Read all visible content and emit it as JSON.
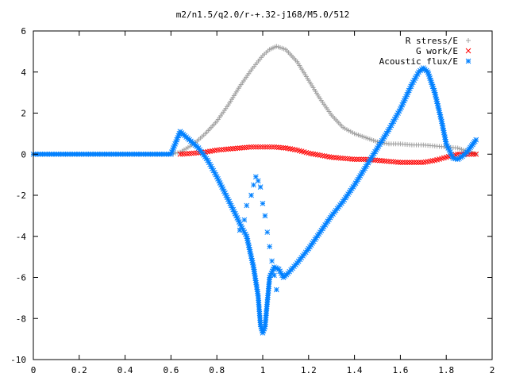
{
  "chart_data": {
    "type": "scatter",
    "title": "m2/n1.5/q2.0/r-+.32-j168/M5.0/512",
    "xlabel": "",
    "ylabel": "",
    "xlim": [
      0,
      2
    ],
    "ylim": [
      -10,
      6
    ],
    "x_ticks": [
      "0",
      "0.2",
      "0.4",
      "0.6",
      "0.8",
      "1",
      "1.2",
      "1.4",
      "1.6",
      "1.8",
      "2"
    ],
    "y_ticks": [
      "6",
      "4",
      "2",
      "0",
      "-2",
      "-4",
      "-6",
      "-8",
      "-10"
    ],
    "grid": false,
    "legend_position": "top-right",
    "series": [
      {
        "name": "R stress/E",
        "marker": "plus",
        "color": "#a0a0a0",
        "x": [
          0,
          0.1,
          0.2,
          0.3,
          0.4,
          0.5,
          0.6,
          0.64,
          0.7,
          0.75,
          0.8,
          0.85,
          0.9,
          0.95,
          1.0,
          1.03,
          1.06,
          1.1,
          1.15,
          1.2,
          1.25,
          1.3,
          1.35,
          1.4,
          1.45,
          1.5,
          1.55,
          1.6,
          1.65,
          1.7,
          1.75,
          1.8,
          1.85,
          1.9,
          1.93
        ],
        "y": [
          0,
          0,
          0,
          0,
          0,
          0,
          0,
          0.1,
          0.5,
          1.0,
          1.6,
          2.4,
          3.3,
          4.1,
          4.8,
          5.1,
          5.25,
          5.1,
          4.5,
          3.6,
          2.7,
          1.9,
          1.3,
          1.0,
          0.8,
          0.6,
          0.5,
          0.5,
          0.45,
          0.45,
          0.4,
          0.35,
          0.3,
          0.1,
          0.0
        ]
      },
      {
        "name": "G work/E",
        "marker": "cross",
        "color": "#ff0000",
        "x": [
          0.64,
          0.7,
          0.75,
          0.8,
          0.85,
          0.9,
          0.95,
          1.0,
          1.05,
          1.1,
          1.15,
          1.2,
          1.3,
          1.4,
          1.45,
          1.5,
          1.55,
          1.6,
          1.65,
          1.7,
          1.75,
          1.8,
          1.85,
          1.9,
          1.93
        ],
        "y": [
          0.0,
          0.05,
          0.1,
          0.2,
          0.25,
          0.3,
          0.35,
          0.35,
          0.35,
          0.3,
          0.2,
          0.05,
          -0.15,
          -0.25,
          -0.25,
          -0.3,
          -0.35,
          -0.4,
          -0.4,
          -0.4,
          -0.3,
          -0.15,
          0.0,
          0.0,
          0.0
        ]
      },
      {
        "name": "Acoustic flux/E",
        "marker": "star",
        "color": "#0080ff",
        "x": [
          0,
          0.1,
          0.2,
          0.3,
          0.4,
          0.5,
          0.6,
          0.64,
          0.68,
          0.72,
          0.76,
          0.8,
          0.84,
          0.88,
          0.91,
          0.93,
          0.96,
          0.98,
          0.99,
          1.0,
          1.01,
          1.02,
          1.03,
          1.05,
          1.07,
          1.09,
          1.11,
          1.15,
          1.2,
          1.25,
          1.3,
          1.35,
          1.4,
          1.45,
          1.5,
          1.55,
          1.6,
          1.65,
          1.68,
          1.7,
          1.72,
          1.75,
          1.78,
          1.8,
          1.83,
          1.85,
          1.87,
          1.89,
          1.91,
          1.93
        ],
        "y": [
          0,
          0,
          0,
          0,
          0,
          0,
          0,
          1.1,
          0.7,
          0.3,
          -0.3,
          -1.1,
          -2.0,
          -2.9,
          -3.6,
          -4.0,
          -5.5,
          -6.9,
          -8.3,
          -8.7,
          -8.4,
          -7.2,
          -6.0,
          -5.5,
          -5.6,
          -6.0,
          -5.8,
          -5.3,
          -4.6,
          -3.8,
          -3.0,
          -2.3,
          -1.5,
          -0.6,
          0.3,
          1.2,
          2.2,
          3.4,
          4.0,
          4.2,
          4.0,
          3.0,
          1.6,
          0.5,
          -0.2,
          -0.25,
          -0.1,
          0.1,
          0.4,
          0.7
        ]
      },
      {
        "name": "",
        "marker": "star",
        "color": "#0080ff",
        "x": [
          0.9,
          0.92,
          0.93,
          0.95,
          0.96,
          0.97,
          0.98,
          0.99,
          1.0,
          1.01,
          1.02,
          1.03,
          1.04,
          1.05,
          1.06
        ],
        "y": [
          -3.7,
          -3.2,
          -2.5,
          -2.0,
          -1.5,
          -1.1,
          -1.3,
          -1.6,
          -2.4,
          -3.0,
          -3.8,
          -4.5,
          -5.2,
          -5.9,
          -6.6
        ]
      }
    ]
  }
}
